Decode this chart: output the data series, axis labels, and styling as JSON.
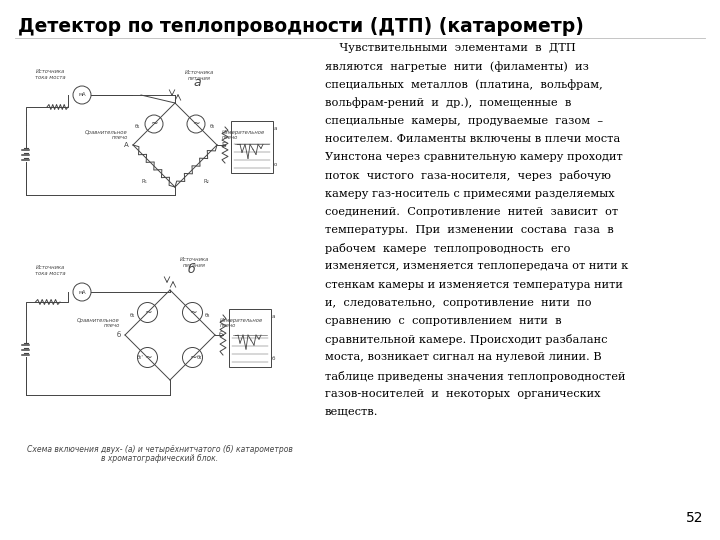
{
  "title": "Детектор по теплопроводности (ДТП) (катарометр)",
  "page_number": "52",
  "background_color": "#ffffff",
  "title_color": "#000000",
  "text_color": "#000000",
  "title_fontsize": 13.5,
  "body_fontsize": 8.2,
  "page_num_fontsize": 10,
  "caption_fontsize": 5.5,
  "lines": [
    "    Чувствительными  элементами  в  ДТП",
    "являются  нагретые  нити  (филаменты)  из",
    "специальных  металлов  (платина,  вольфрам,",
    "вольфрам-рений  и  др.),  помещенные  в",
    "специальные  камеры,  продуваемые  газом  –",
    "носителем. Филаменты включены в плечи моста",
    "Уинстона через сравнительную камеру проходит",
    "поток  чистого  газа-носителя,  через  рабочую",
    "камеру газ-носитель с примесями разделяемых",
    "соединений.  Сопротивление  нитей  зависит  от",
    "температуры.  При  изменении  состава  газа  в",
    "рабочем  камере  теплопроводность  его",
    "изменяется, изменяется теплопередача от нити к",
    "стенкам камеры и изменяется температура нити",
    "и,  следовательно,  сопротивление  нити  по",
    "сравнению  с  сопротивлением  нити  в",
    "сравнительной камере. Происходит разбаланс",
    "моста, возникает сигнал на нулевой линии. В",
    "таблице приведены значения теплопроводностей",
    "газов-носителей  и  некоторых  органических",
    "веществ."
  ],
  "caption_line1": "Схема включения двух- (а) и четырёхнитчатого (б) катарометров",
  "caption_line2": "в хроматографический блок.",
  "diagram_color": "#444444",
  "diagram_lw": 0.7
}
